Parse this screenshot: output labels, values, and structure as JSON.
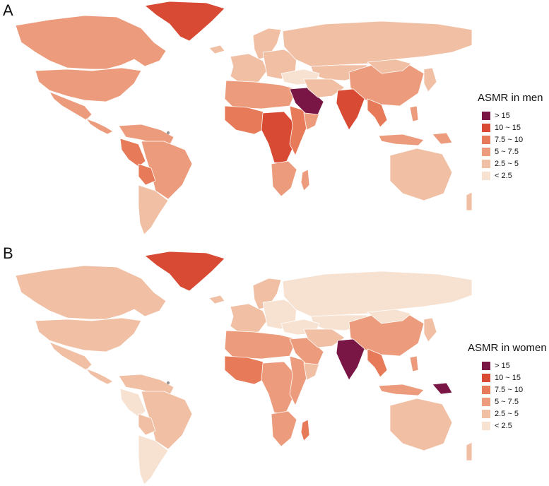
{
  "colors": {
    "gt15": "#7a1645",
    "10to15": "#d84a34",
    "7_5to10": "#e77a58",
    "5to7_5": "#ec9c7c",
    "2_5to5": "#f0bfa4",
    "lt2_5": "#f7e2d2",
    "nodata": "#999999"
  },
  "legend_labels": [
    "> 15",
    "10 ~ 15",
    "7.5 ~ 10",
    "5 ~ 7.5",
    "2.5 ~ 5",
    "< 2.5"
  ],
  "legend_keys": [
    "gt15",
    "10to15",
    "7_5to10",
    "5to7_5",
    "2_5to5",
    "lt2_5"
  ],
  "panels": [
    {
      "letter": "A",
      "legend_title": "ASMR in men",
      "regions": {
        "greenland": "10to15",
        "canada": "5to7_5",
        "usa": "5to7_5",
        "mexico": "5to7_5",
        "central_america": "5to7_5",
        "south_america_north": "5to7_5",
        "brazil": "5to7_5",
        "peru": "7_5to10",
        "bolivia": "7_5to10",
        "south_america_south": "2_5to5",
        "iceland": "2_5to5",
        "scandinavia": "2_5to5",
        "western_europe": "2_5to5",
        "eastern_europe": "2_5to5",
        "russia": "2_5to5",
        "central_asia": "2_5to5",
        "turkey_caucasus": "lt2_5",
        "china": "5to7_5",
        "mongolia": "2_5to5",
        "japan_korea": "2_5to5",
        "north_africa": "5to7_5",
        "west_africa": "7_5to10",
        "central_africa": "10to15",
        "east_africa": "7_5to10",
        "horn_africa": "5to7_5",
        "southern_africa": "5to7_5",
        "madagascar": "5to7_5",
        "arabian_peninsula": "gt15",
        "iran_middle_east": "2_5to5",
        "india": "10to15",
        "southeast_asia": "7_5to10",
        "indonesia": "5to7_5",
        "philippines": "5to7_5",
        "png": "5to7_5",
        "australia": "2_5to5",
        "new_zealand": "2_5to5"
      }
    },
    {
      "letter": "B",
      "legend_title": "ASMR in women",
      "regions": {
        "greenland": "10to15",
        "canada": "2_5to5",
        "usa": "2_5to5",
        "mexico": "2_5to5",
        "central_america": "2_5to5",
        "south_america_north": "2_5to5",
        "brazil": "2_5to5",
        "peru": "lt2_5",
        "bolivia": "2_5to5",
        "south_america_south": "lt2_5",
        "iceland": "2_5to5",
        "scandinavia": "2_5to5",
        "western_europe": "2_5to5",
        "eastern_europe": "lt2_5",
        "russia": "lt2_5",
        "central_asia": "lt2_5",
        "turkey_caucasus": "lt2_5",
        "china": "5to7_5",
        "mongolia": "lt2_5",
        "japan_korea": "2_5to5",
        "north_africa": "5to7_5",
        "west_africa": "7_5to10",
        "central_africa": "5to7_5",
        "east_africa": "5to7_5",
        "horn_africa": "2_5to5",
        "southern_africa": "5to7_5",
        "madagascar": "7_5to10",
        "arabian_peninsula": "5to7_5",
        "iran_middle_east": "2_5to5",
        "india": "gt15",
        "southeast_asia": "7_5to10",
        "indonesia": "5to7_5",
        "philippines": "5to7_5",
        "png": "gt15",
        "australia": "2_5to5",
        "new_zealand": "2_5to5"
      }
    }
  ]
}
